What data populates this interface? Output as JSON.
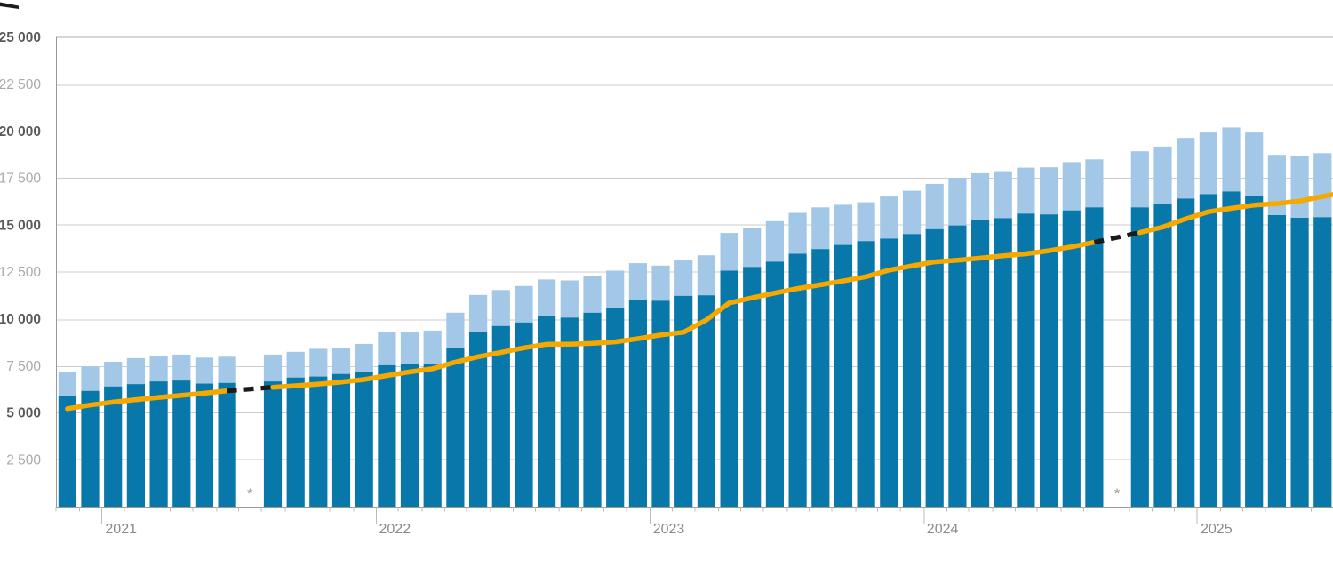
{
  "chart_data": {
    "type": "stacked-bar-line",
    "title": "",
    "legend": "none visible",
    "colors": {
      "bar_dark_blue": "#0878aa",
      "bar_light_blue": "#a3c7e6",
      "trend_line_orange": "#f5a800",
      "bridge_dash_black": "#1a1a1a",
      "gridline": "#cdcdcd",
      "gridline_top": "#adadad",
      "axis": "#999999",
      "tick": "#bbbbbb",
      "y_label_bold": "#595959",
      "y_label_light": "#a9a9a9",
      "year_label": "#8a8a8a",
      "asterisk": "#9a9a9a"
    },
    "y_axis": {
      "min": 0,
      "max": 25000,
      "gridline_interval": 2500,
      "ticks": [
        {
          "value": 2500,
          "label": "2 500",
          "bold": false
        },
        {
          "value": 5000,
          "label": "5 000",
          "bold": true
        },
        {
          "value": 7500,
          "label": "7 500",
          "bold": false
        },
        {
          "value": 10000,
          "label": "10 000",
          "bold": true
        },
        {
          "value": 12500,
          "label": "12 500",
          "bold": false
        },
        {
          "value": 15000,
          "label": "15 000",
          "bold": true
        },
        {
          "value": 17500,
          "label": "17 500",
          "bold": false
        },
        {
          "value": 20000,
          "label": "20 000",
          "bold": true
        },
        {
          "value": 22500,
          "label": "22 500",
          "bold": false
        },
        {
          "value": 25000,
          "label": "25 000",
          "bold": true
        }
      ]
    },
    "x_axis": {
      "year_labels": [
        {
          "label": "2021",
          "slot": 2
        },
        {
          "label": "2022",
          "slot": 14
        },
        {
          "label": "2023",
          "slot": 26
        },
        {
          "label": "2024",
          "slot": 38
        },
        {
          "label": "2025",
          "slot": 50
        }
      ]
    },
    "categories": [
      "2020-11",
      "2020-12",
      "2021-01",
      "2021-02",
      "2021-03",
      "2021-04",
      "2021-05",
      "2021-06",
      "2021-07",
      "2021-08",
      "2021-09",
      "2021-10",
      "2021-11",
      "2021-12",
      "2022-01",
      "2022-02",
      "2022-03",
      "2022-04",
      "2022-05",
      "2022-06",
      "2022-07",
      "2022-08",
      "2022-09",
      "2022-10",
      "2022-11",
      "2022-12",
      "2023-01",
      "2023-02",
      "2023-03",
      "2023-04",
      "2023-05",
      "2023-06",
      "2023-07",
      "2023-08",
      "2023-09",
      "2023-10",
      "2023-11",
      "2023-12",
      "2024-01",
      "2024-02",
      "2024-03",
      "2024-04",
      "2024-05",
      "2024-06",
      "2024-07",
      "2024-08",
      "2024-09",
      "2024-10",
      "2024-11",
      "2024-12",
      "2025-01",
      "2025-02",
      "2025-03",
      "2025-04",
      "2025-05",
      "2025-06"
    ],
    "series": [
      {
        "name": "bar_total_top_of_light_segment",
        "values": [
          7150,
          7460,
          7720,
          7910,
          8030,
          8100,
          7940,
          7990,
          null,
          8100,
          8250,
          8410,
          8460,
          8670,
          9280,
          9330,
          9380,
          10330,
          11280,
          11540,
          11750,
          12100,
          12050,
          12290,
          12570,
          12970,
          12840,
          13130,
          13390,
          14580,
          14860,
          15210,
          15650,
          15940,
          16080,
          16210,
          16520,
          16830,
          17190,
          17520,
          17760,
          17870,
          18060,
          18080,
          18350,
          18500,
          null,
          18930,
          19180,
          19640,
          19930,
          20200,
          19930,
          18740,
          18690,
          18830
        ]
      },
      {
        "name": "bar_dark_bottom_segment",
        "values": [
          5880,
          6170,
          6400,
          6530,
          6670,
          6720,
          6560,
          6590,
          null,
          6670,
          6880,
          6930,
          7070,
          7150,
          7540,
          7590,
          7620,
          8460,
          9330,
          9620,
          9810,
          10150,
          10070,
          10330,
          10590,
          10990,
          10970,
          11230,
          11260,
          12570,
          12770,
          13050,
          13470,
          13720,
          13940,
          14150,
          14280,
          14520,
          14780,
          14980,
          15290,
          15370,
          15610,
          15570,
          15780,
          15940,
          null,
          15940,
          16100,
          16410,
          16650,
          16790,
          16560,
          15530,
          15390,
          15420
        ]
      },
      {
        "name": "orange_trend_line",
        "values": [
          5220,
          5410,
          5570,
          5700,
          5820,
          5930,
          6040,
          6170,
          null,
          6360,
          6440,
          6530,
          6640,
          6770,
          6980,
          7180,
          7350,
          7700,
          7990,
          8220,
          8460,
          8650,
          8650,
          8700,
          8780,
          8950,
          9150,
          9290,
          9950,
          10850,
          11120,
          11380,
          11620,
          11820,
          12020,
          12250,
          12600,
          12820,
          13040,
          13130,
          13240,
          13360,
          13470,
          13630,
          13840,
          14080,
          null,
          14600,
          14890,
          15330,
          15710,
          15890,
          16060,
          16140,
          16280,
          16520
        ],
        "right_edge_value": 16630
      }
    ],
    "missing_data": {
      "marker_symbol": "*",
      "slots": [
        {
          "slot": 8,
          "category": "2021-07"
        },
        {
          "slot": 46,
          "category": "2024-09"
        }
      ],
      "line_bridge": "dashed black segment connects neighbouring line points across each missing slot"
    }
  }
}
